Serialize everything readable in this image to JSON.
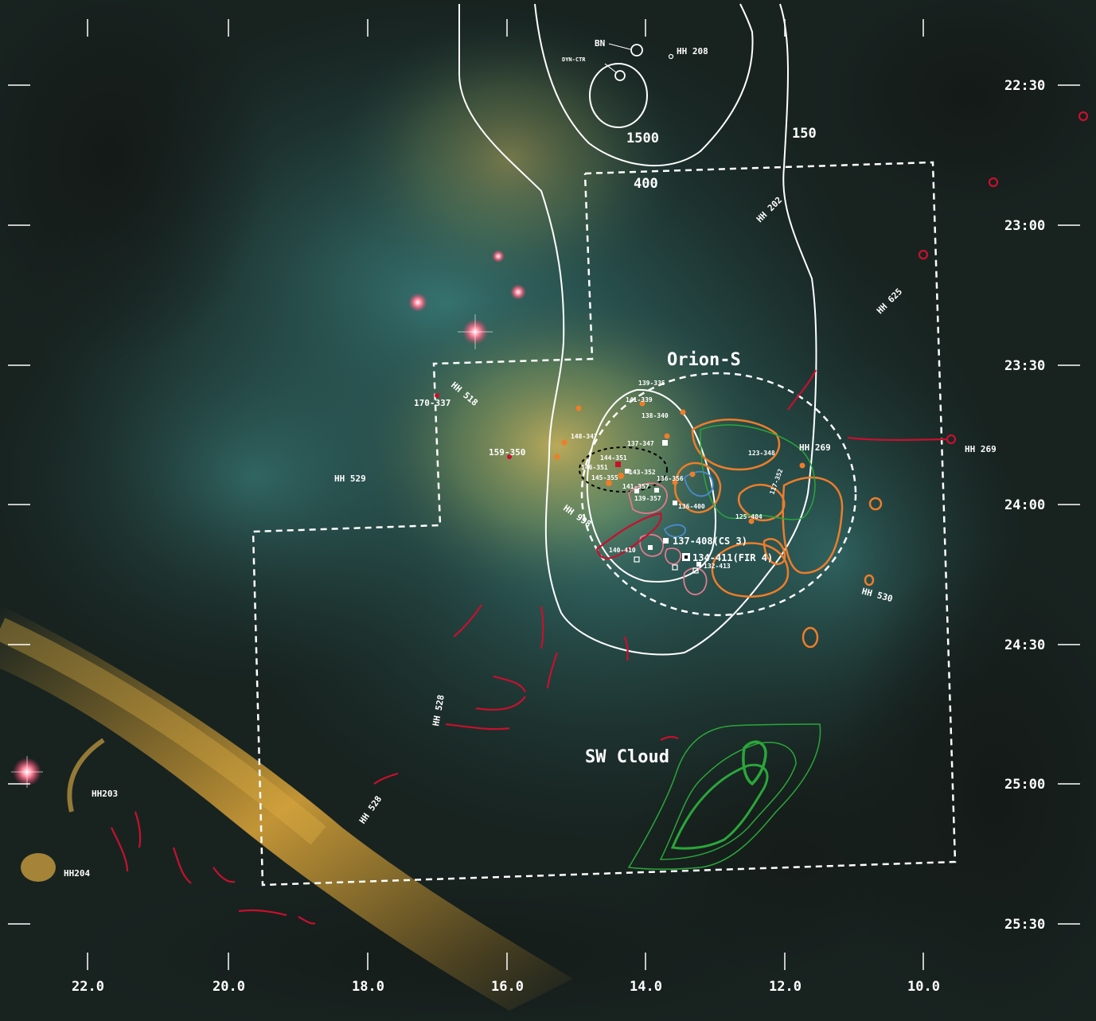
{
  "axes": {
    "x_ticks": [
      "22.0",
      "20.0",
      "18.0",
      "16.0",
      "14.0",
      "12.0",
      "10.0"
    ],
    "y_ticks": [
      "22:30",
      "23:00",
      "23:30",
      "24:00",
      "24:30",
      "25:00",
      "25:30"
    ]
  },
  "regions": {
    "orion_s": "Orion-S",
    "sw_cloud": "SW Cloud"
  },
  "contour_levels": {
    "l1500": "1500",
    "l400": "400",
    "l150": "150"
  },
  "sources": {
    "bn": "BN",
    "dyn_ctr": "DYN-CTR",
    "s170_337": "170-337",
    "s159_350": "159-350",
    "s139_335": "139-335",
    "s141_339": "141-339",
    "s138_340": "138-340",
    "s148_347": "148-347",
    "s137_347": "137-347",
    "s144_351": "144-351",
    "s146_351": "146-351",
    "s143_352": "143-352",
    "s145_355": "145-355",
    "s141_357": "141-357",
    "s136_356": "136-356",
    "s139_357": "139-357",
    "s136_400": "136-400",
    "s123_348": "123-348",
    "s117_352": "117-352",
    "s125_404": "125-404",
    "s140_410": "140-410",
    "s137_408": "137-408(CS 3)",
    "s134_411": "134-411(FIR 4)",
    "s132_413": "132-413"
  },
  "hh_objects": {
    "hh208": "HH 208",
    "hh202": "HH 202",
    "hh625": "HH 625",
    "hh518": "HH 518",
    "hh529": "HH 529",
    "hh269a": "HH 269",
    "hh269b": "HH 269",
    "hh998": "HH 998",
    "hh530": "HH 530",
    "hh528a": "HH 528",
    "hh528b": "HH 528",
    "hh203": "HH203",
    "hh204": "HH204"
  },
  "colors": {
    "white_contour": "#ffffff",
    "orange_contour": "#ee7d2a",
    "green_contour": "#2aa63a",
    "red_jet": "#c8102e",
    "pink_contour": "#e07a8c",
    "blue_contour": "#4a8ad0"
  }
}
